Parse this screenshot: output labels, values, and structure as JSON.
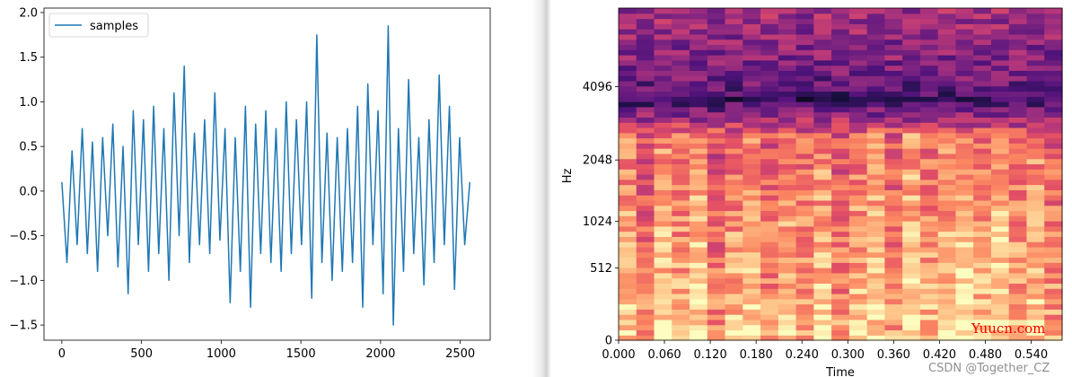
{
  "chart_data": [
    {
      "type": "line",
      "legend": {
        "placement": "upper-left",
        "entries": [
          "samples"
        ]
      },
      "series": [
        {
          "name": "samples",
          "color": "#1f77b4",
          "x_range": [
            0,
            2560
          ],
          "x": [
            0,
            32,
            64,
            96,
            128,
            160,
            192,
            224,
            256,
            288,
            320,
            352,
            384,
            416,
            448,
            480,
            512,
            544,
            576,
            608,
            640,
            672,
            704,
            736,
            768,
            800,
            832,
            864,
            896,
            928,
            960,
            992,
            1024,
            1056,
            1088,
            1120,
            1152,
            1184,
            1216,
            1248,
            1280,
            1312,
            1344,
            1376,
            1408,
            1440,
            1472,
            1504,
            1536,
            1568,
            1600,
            1632,
            1664,
            1696,
            1728,
            1760,
            1792,
            1824,
            1856,
            1888,
            1920,
            1952,
            1984,
            2016,
            2048,
            2080,
            2112,
            2144,
            2176,
            2208,
            2240,
            2272,
            2304,
            2336,
            2368,
            2400,
            2432,
            2464,
            2496,
            2528,
            2560
          ],
          "values": [
            0.1,
            -0.8,
            0.45,
            -0.6,
            0.7,
            -0.7,
            0.55,
            -0.9,
            0.6,
            -0.5,
            0.75,
            -0.85,
            0.5,
            -1.15,
            0.9,
            -0.6,
            0.8,
            -0.9,
            0.95,
            -0.7,
            0.7,
            -1.0,
            1.1,
            -0.5,
            1.4,
            -0.8,
            0.65,
            -0.6,
            0.8,
            -0.7,
            1.1,
            -0.55,
            0.7,
            -1.25,
            0.6,
            -0.9,
            0.95,
            -1.3,
            0.75,
            -0.7,
            0.9,
            -0.8,
            0.7,
            -0.9,
            1.0,
            -0.7,
            0.8,
            -0.6,
            1.0,
            -1.2,
            1.75,
            -0.8,
            0.65,
            -1.0,
            0.6,
            -0.9,
            0.7,
            -0.8,
            0.95,
            -1.3,
            1.2,
            -0.6,
            0.9,
            -1.15,
            1.85,
            -1.5,
            0.7,
            -0.9,
            1.25,
            -0.7,
            0.6,
            -1.05,
            0.8,
            -0.8,
            1.3,
            -0.6,
            0.95,
            -1.1,
            0.6,
            -0.6,
            0.1
          ]
        }
      ],
      "xlim": [
        -112,
        2688
      ],
      "ylim": [
        -1.67,
        2.05
      ],
      "x_ticks": [
        0,
        500,
        1000,
        1500,
        2000,
        2500
      ],
      "x_tick_labels": [
        "0",
        "500",
        "1000",
        "1500",
        "2000",
        "2500"
      ],
      "y_ticks": [
        -1.5,
        -1.0,
        -0.5,
        0.0,
        0.5,
        1.0,
        1.5,
        2.0
      ],
      "y_tick_labels": [
        "−1.5",
        "−1.0",
        "−0.5",
        "0.0",
        "0.5",
        "1.0",
        "1.5",
        "2.0"
      ],
      "xlabel": "",
      "ylabel": "",
      "title": "",
      "grid": false
    },
    {
      "type": "heatmap",
      "xlabel": "Time",
      "ylabel": "Hz",
      "title": "",
      "x_ticks": [
        0.0,
        0.06,
        0.12,
        0.18,
        0.24,
        0.3,
        0.36,
        0.42,
        0.48,
        0.54
      ],
      "x_tick_labels": [
        "0.000",
        "0.060",
        "0.120",
        "0.180",
        "0.240",
        "0.300",
        "0.360",
        "0.420",
        "0.480",
        "0.540"
      ],
      "xlim": [
        0.0,
        0.5805
      ],
      "y_scale": "mel",
      "y_ticks": [
        0,
        512,
        1024,
        2048,
        4096
      ],
      "y_tick_labels": [
        "0",
        "512",
        "1024",
        "2048",
        "4096"
      ],
      "colormap": "magma",
      "grid": false,
      "n_time_frames": 25,
      "n_freq_bins": 64
    }
  ],
  "watermarks": {
    "site": "Yuucn.com",
    "site_color": "#ff0000",
    "credit": "CSDN @Together_CZ"
  }
}
